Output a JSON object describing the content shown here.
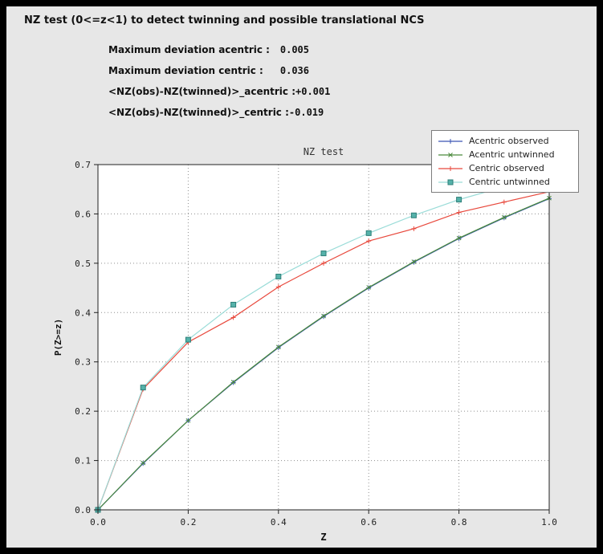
{
  "window": {
    "title": "NZ test (0<=z<1) to detect twinning and possible translational NCS"
  },
  "stats": [
    {
      "label": "Maximum deviation acentric :",
      "value": "0.005"
    },
    {
      "label": "Maximum deviation centric :",
      "value": "0.036"
    },
    {
      "label": "<NZ(obs)-NZ(twinned)>_acentric :",
      "value": "+0.001"
    },
    {
      "label": "<NZ(obs)-NZ(twinned)>_centric :",
      "value": "-0.019"
    }
  ],
  "chart_data": {
    "type": "line",
    "title": "NZ test",
    "xlabel": "Z",
    "ylabel": "P(Z>=z)",
    "xlim": [
      0.0,
      1.0
    ],
    "ylim": [
      0.0,
      0.7
    ],
    "x_ticks": [
      0.0,
      0.2,
      0.4,
      0.6,
      0.8,
      1.0
    ],
    "y_ticks": [
      0.0,
      0.1,
      0.2,
      0.3,
      0.4,
      0.5,
      0.6,
      0.7
    ],
    "grid": true,
    "grid_color": "#8f8f8f",
    "plot_bg": "#ffffff",
    "legend_position": "top-right",
    "x": [
      0.0,
      0.1,
      0.2,
      0.3,
      0.4,
      0.5,
      0.6,
      0.7,
      0.8,
      0.9,
      1.0
    ],
    "series": [
      {
        "name": "Acentric observed",
        "color": "#3a55b4",
        "marker": "plus",
        "values": [
          0.0,
          0.094,
          0.181,
          0.258,
          0.329,
          0.392,
          0.45,
          0.502,
          0.55,
          0.592,
          0.631
        ]
      },
      {
        "name": "Acentric untwinned",
        "color": "#4a8a3c",
        "marker": "x",
        "values": [
          0.0,
          0.095,
          0.181,
          0.259,
          0.33,
          0.393,
          0.451,
          0.503,
          0.551,
          0.593,
          0.632
        ]
      },
      {
        "name": "Centric observed",
        "color": "#e8483c",
        "marker": "plus",
        "values": [
          0.0,
          0.245,
          0.34,
          0.39,
          0.452,
          0.5,
          0.545,
          0.57,
          0.603,
          0.624,
          0.645
        ]
      },
      {
        "name": "Centric untwinned",
        "color": "#9adcd8",
        "marker": "square",
        "marker_fill": "#55b2aa",
        "marker_edge": "#2e7f78",
        "values": [
          0.0,
          0.248,
          0.345,
          0.416,
          0.473,
          0.52,
          0.561,
          0.597,
          0.629,
          0.655,
          0.68
        ]
      }
    ]
  }
}
